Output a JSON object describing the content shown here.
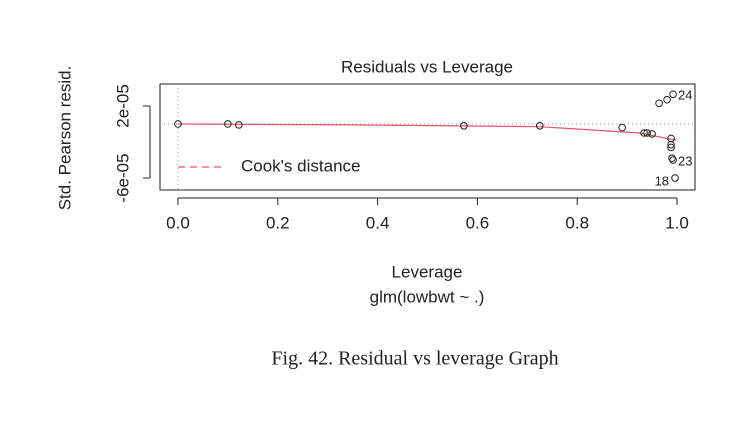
{
  "chart_data": {
    "type": "scatter",
    "title": "Residuals vs Leverage",
    "x_label": "Leverage",
    "subtitle": "glm(lowbwt ~ .)",
    "y_label": "Std. Pearson resid.",
    "caption": "Fig. 42. Residual vs leverage Graph",
    "x": [
      0,
      0.1,
      0.122,
      0.573,
      0.725,
      0.89,
      0.934,
      0.94,
      0.95,
      0.964,
      0.98,
      0.992,
      0.988,
      0.988,
      0.988,
      0.99,
      0.992,
      0.996
    ],
    "values": [
      0,
      0,
      -1e-06,
      -2e-06,
      -2e-06,
      -4e-06,
      -1e-05,
      -1e-05,
      -1.1e-05,
      2.3e-05,
      2.7e-05,
      3.3e-05,
      -1.6e-05,
      -2.3e-05,
      -2.6e-05,
      -3.8e-05,
      -4e-05,
      -6e-05
    ],
    "smooth": {
      "color": "#df536b",
      "x": [
        0,
        0.35,
        0.725,
        0.925,
        0.998
      ],
      "values": [
        0,
        -1e-06,
        -3e-06,
        -1e-05,
        -1.8e-05
      ]
    },
    "annotations": [
      {
        "text": "24",
        "x": 0.992,
        "y": 3.3e-05
      },
      {
        "text": "23",
        "x": 0.992,
        "y": -4e-05
      },
      {
        "text": "18",
        "x": 0.996,
        "y": -6e-05
      }
    ],
    "legend": {
      "name": "Cook's distance",
      "color": "#df536b",
      "position": "left"
    },
    "xlim": [
      -0.036,
      1.036
    ],
    "ylim": [
      -7.33e-05,
      4.44e-05
    ],
    "xticks": [
      {
        "value": 0,
        "label": "0.0"
      },
      0.2,
      0.4,
      0.6,
      0.8,
      {
        "value": 1,
        "label": "1.0"
      }
    ],
    "yticks": [
      {
        "value": 2e-05,
        "label": "2e-05"
      },
      {
        "value": -6e-05,
        "label": "-6e-05"
      }
    ],
    "reference_lines": {
      "x": 0,
      "y": 0
    }
  }
}
